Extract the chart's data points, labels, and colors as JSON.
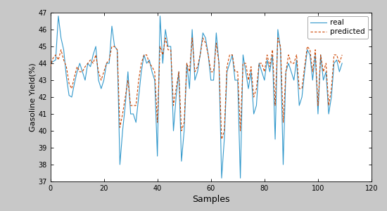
{
  "title": "",
  "xlabel": "Samples",
  "ylabel": "Gasoline Yield(%)",
  "xlim": [
    0,
    120
  ],
  "ylim": [
    37,
    47
  ],
  "yticks": [
    37,
    38,
    39,
    40,
    41,
    42,
    43,
    44,
    45,
    46,
    47
  ],
  "xticks": [
    0,
    20,
    40,
    60,
    80,
    100,
    120
  ],
  "real_color": "#3399CC",
  "predicted_color": "#CC4400",
  "legend_labels": [
    "real",
    "predicted"
  ],
  "figsize": [
    5.5,
    3.0
  ],
  "dpi": 100,
  "bg_color": "#C8C8C8",
  "real_data": [
    44.0,
    44.1,
    44.2,
    46.8,
    45.5,
    44.8,
    43.2,
    42.1,
    42.0,
    42.8,
    43.5,
    44.0,
    43.5,
    43.0,
    44.0,
    43.8,
    44.5,
    45.0,
    43.0,
    42.5,
    43.0,
    44.0,
    44.0,
    46.2,
    45.0,
    44.8,
    38.0,
    40.0,
    41.5,
    43.5,
    41.0,
    41.0,
    40.5,
    42.0,
    43.5,
    44.5,
    44.0,
    44.2,
    43.5,
    43.0,
    38.5,
    46.8,
    44.0,
    46.0,
    45.0,
    45.0,
    40.0,
    42.0,
    43.5,
    38.2,
    40.0,
    44.0,
    42.5,
    46.0,
    43.0,
    43.5,
    44.5,
    45.8,
    45.5,
    44.5,
    43.0,
    43.0,
    45.8,
    44.0,
    37.2,
    39.5,
    43.5,
    44.0,
    44.5,
    43.0,
    43.0,
    37.2,
    44.5,
    43.5,
    42.5,
    43.5,
    41.0,
    41.5,
    44.0,
    43.5,
    43.0,
    44.2,
    43.5,
    44.5,
    39.5,
    46.0,
    44.8,
    38.0,
    43.5,
    44.0,
    43.5,
    43.0,
    44.2,
    41.5,
    42.0,
    43.5,
    44.8,
    44.5,
    43.0,
    44.5,
    41.0,
    44.5,
    43.0,
    43.5,
    41.0,
    42.0,
    44.0,
    44.2,
    43.5,
    44.0
  ],
  "predicted_data": [
    43.8,
    44.3,
    44.5,
    44.2,
    44.8,
    44.2,
    43.8,
    42.8,
    42.5,
    43.2,
    43.8,
    43.5,
    43.5,
    43.8,
    44.0,
    44.2,
    44.0,
    44.5,
    43.5,
    43.0,
    43.5,
    44.0,
    44.2,
    45.0,
    45.0,
    44.8,
    40.2,
    41.0,
    42.0,
    43.0,
    41.5,
    41.5,
    41.5,
    43.0,
    44.0,
    44.5,
    44.5,
    44.0,
    43.8,
    43.5,
    40.5,
    45.0,
    44.5,
    45.5,
    44.8,
    44.8,
    41.5,
    42.5,
    43.5,
    40.0,
    40.5,
    44.0,
    43.5,
    45.5,
    43.5,
    43.8,
    44.5,
    45.5,
    45.2,
    44.5,
    43.5,
    43.5,
    45.2,
    44.0,
    39.5,
    40.0,
    43.8,
    44.5,
    44.5,
    43.5,
    43.5,
    40.0,
    44.0,
    44.0,
    43.0,
    43.8,
    42.0,
    42.5,
    44.0,
    44.0,
    43.5,
    44.5,
    43.8,
    44.8,
    41.5,
    45.5,
    45.0,
    40.5,
    43.5,
    44.5,
    44.0,
    44.0,
    44.5,
    42.5,
    42.5,
    43.8,
    45.0,
    44.8,
    43.5,
    44.8,
    41.5,
    44.5,
    43.5,
    44.0,
    41.5,
    42.5,
    44.5,
    44.5,
    44.0,
    44.5
  ]
}
